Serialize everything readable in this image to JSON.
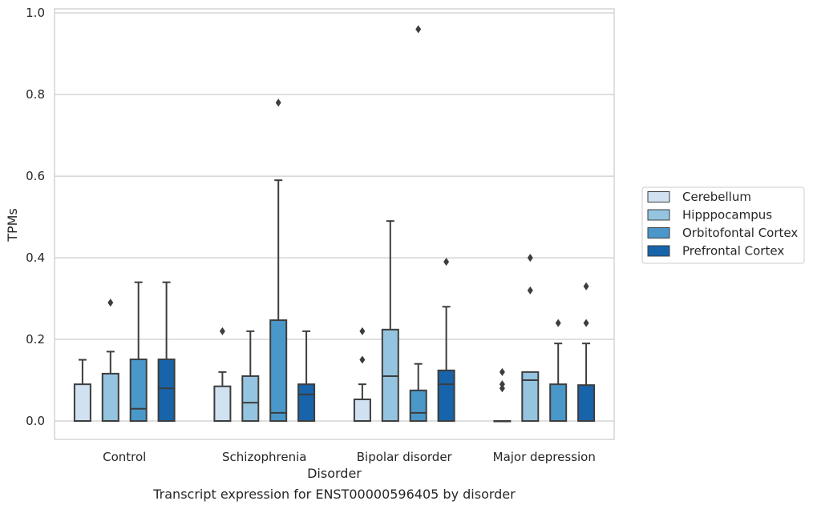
{
  "chart_data": {
    "type": "boxplot",
    "title": "",
    "caption": "Transcript expression for ENST00000596405 by disorder",
    "xlabel": "Disorder",
    "ylabel": "TPMs",
    "ylim": [
      -0.045,
      1.01
    ],
    "yticks": [
      "0.0",
      "0.2",
      "0.4",
      "0.6",
      "0.8",
      "1.0"
    ],
    "grid": true,
    "legend_position": "right",
    "categories": [
      "Control",
      "Schizophrenia",
      "Bipolar disorder",
      "Major depression"
    ],
    "series": [
      {
        "name": "Cerebellum",
        "color": "#d0e1f2",
        "boxes": [
          {
            "whislo": 0.0,
            "q1": 0.0,
            "med": 0.0,
            "q3": 0.09,
            "whishi": 0.15,
            "fliers": []
          },
          {
            "whislo": 0.0,
            "q1": 0.0,
            "med": 0.0,
            "q3": 0.085,
            "whishi": 0.12,
            "fliers": [
              0.22
            ]
          },
          {
            "whislo": 0.0,
            "q1": 0.0,
            "med": 0.0,
            "q3": 0.053,
            "whishi": 0.09,
            "fliers": [
              0.15,
              0.22
            ]
          },
          {
            "whislo": 0.0,
            "q1": 0.0,
            "med": 0.0,
            "q3": 0.0,
            "whishi": 0.0,
            "fliers": [
              0.08,
              0.09,
              0.12
            ]
          }
        ]
      },
      {
        "name": "Hipppocampus",
        "color": "#94c4df",
        "boxes": [
          {
            "whislo": 0.0,
            "q1": 0.0,
            "med": 0.0,
            "q3": 0.116,
            "whishi": 0.17,
            "fliers": [
              0.29
            ]
          },
          {
            "whislo": 0.0,
            "q1": 0.0,
            "med": 0.045,
            "q3": 0.11,
            "whishi": 0.22,
            "fliers": []
          },
          {
            "whislo": 0.0,
            "q1": 0.0,
            "med": 0.11,
            "q3": 0.224,
            "whishi": 0.49,
            "fliers": []
          },
          {
            "whislo": 0.0,
            "q1": 0.0,
            "med": 0.1,
            "q3": 0.12,
            "whishi": 0.12,
            "fliers": [
              0.32,
              0.4
            ]
          }
        ]
      },
      {
        "name": "Orbitofontal Cortex",
        "color": "#4a98c9",
        "boxes": [
          {
            "whislo": 0.0,
            "q1": 0.0,
            "med": 0.03,
            "q3": 0.151,
            "whishi": 0.34,
            "fliers": []
          },
          {
            "whislo": 0.0,
            "q1": 0.0,
            "med": 0.02,
            "q3": 0.247,
            "whishi": 0.59,
            "fliers": [
              0.78
            ]
          },
          {
            "whislo": 0.0,
            "q1": 0.0,
            "med": 0.02,
            "q3": 0.075,
            "whishi": 0.14,
            "fliers": [
              0.96
            ]
          },
          {
            "whislo": 0.0,
            "q1": 0.0,
            "med": 0.0,
            "q3": 0.09,
            "whishi": 0.19,
            "fliers": [
              0.24
            ]
          }
        ]
      },
      {
        "name": "Prefrontal Cortex",
        "color": "#1764ab",
        "boxes": [
          {
            "whislo": 0.0,
            "q1": 0.0,
            "med": 0.08,
            "q3": 0.151,
            "whishi": 0.34,
            "fliers": []
          },
          {
            "whislo": 0.0,
            "q1": 0.0,
            "med": 0.065,
            "q3": 0.09,
            "whishi": 0.22,
            "fliers": []
          },
          {
            "whislo": 0.0,
            "q1": 0.0,
            "med": 0.09,
            "q3": 0.124,
            "whishi": 0.28,
            "fliers": [
              0.39
            ]
          },
          {
            "whislo": 0.0,
            "q1": 0.0,
            "med": 0.0,
            "q3": 0.088,
            "whishi": 0.19,
            "fliers": [
              0.24,
              0.33
            ]
          }
        ]
      }
    ]
  }
}
